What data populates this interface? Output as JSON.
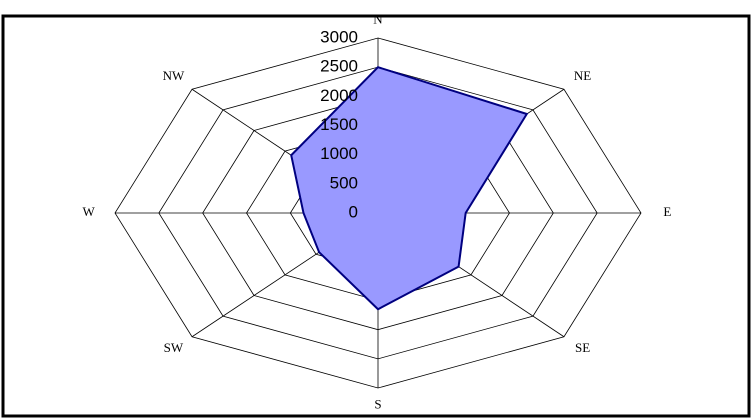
{
  "chart_data": {
    "type": "radar",
    "categories": [
      "N",
      "NE",
      "E",
      "SE",
      "S",
      "SW",
      "W",
      "NW"
    ],
    "values": [
      2500,
      2400,
      1000,
      1300,
      1650,
      950,
      850,
      1400
    ],
    "color": "#9999ff",
    "line_color": "#000080",
    "ylim": [
      0,
      3000
    ],
    "yticks": [
      0,
      500,
      1000,
      1500,
      2000,
      2500,
      3000
    ],
    "grid": true
  }
}
